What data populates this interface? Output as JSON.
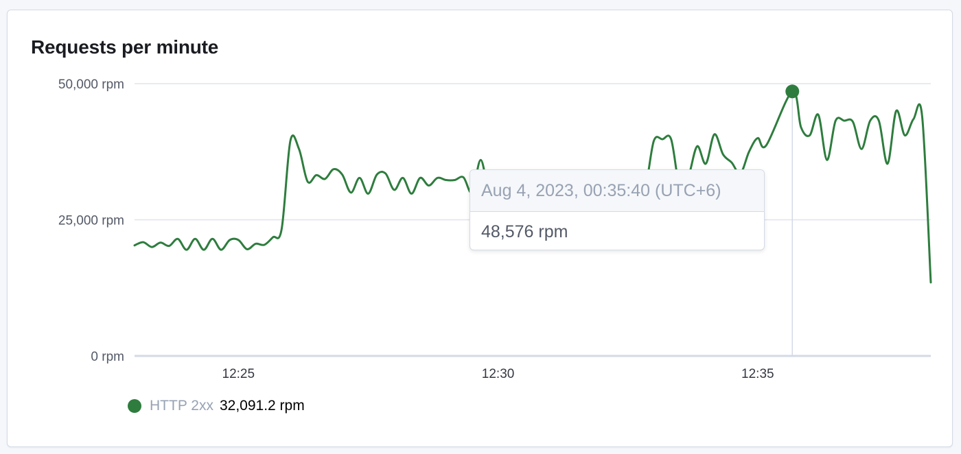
{
  "panel": {
    "title": "Requests per minute"
  },
  "colors": {
    "series": "#2e7d3e",
    "grid": "#dfe3ea",
    "axis": "#d3dae6",
    "crosshair": "#d3dae6"
  },
  "tooltip": {
    "timestamp": "Aug 4, 2023, 00:35:40 (UTC+6)",
    "value": "48,576 rpm"
  },
  "legend": {
    "name": "HTTP 2xx",
    "value": "32,091.2 rpm",
    "color": "#2e7d3e"
  },
  "chart_data": {
    "type": "line",
    "title": "Requests per minute",
    "unit": "rpm",
    "x_unit": "minutes",
    "y_ticks": [
      {
        "value": 0,
        "label": "0 rpm"
      },
      {
        "value": 25000,
        "label": "25,000 rpm"
      },
      {
        "value": 50000,
        "label": "50,000 rpm"
      }
    ],
    "x_ticks": [
      {
        "value": "12:25",
        "label": "12:25"
      },
      {
        "value": "12:30",
        "label": "12:30"
      },
      {
        "value": "12:35",
        "label": "12:35"
      }
    ],
    "xlim": [
      "12:23:00",
      "12:38:20"
    ],
    "ylim": [
      0,
      50000
    ],
    "grid": true,
    "legend_position": "bottom-left",
    "highlight": {
      "x": "12:35:40",
      "y": 48576
    },
    "series": [
      {
        "name": "HTTP 2xx",
        "color": "#2e7d3e",
        "points": [
          [
            "12:23:00",
            20300
          ],
          [
            "12:23:10",
            20900
          ],
          [
            "12:23:20",
            20000
          ],
          [
            "12:23:30",
            20800
          ],
          [
            "12:23:40",
            20200
          ],
          [
            "12:23:50",
            21500
          ],
          [
            "12:24:00",
            19500
          ],
          [
            "12:24:10",
            21500
          ],
          [
            "12:24:20",
            19500
          ],
          [
            "12:24:30",
            21500
          ],
          [
            "12:24:40",
            19500
          ],
          [
            "12:24:50",
            21300
          ],
          [
            "12:25:00",
            21300
          ],
          [
            "12:25:10",
            19600
          ],
          [
            "12:25:20",
            20600
          ],
          [
            "12:25:30",
            20400
          ],
          [
            "12:25:40",
            21800
          ],
          [
            "12:25:50",
            23300
          ],
          [
            "12:26:00",
            39500
          ],
          [
            "12:26:10",
            38000
          ],
          [
            "12:26:20",
            32000
          ],
          [
            "12:26:30",
            33200
          ],
          [
            "12:26:40",
            32500
          ],
          [
            "12:26:50",
            34300
          ],
          [
            "12:27:00",
            33300
          ],
          [
            "12:27:10",
            30000
          ],
          [
            "12:27:20",
            32700
          ],
          [
            "12:27:30",
            29800
          ],
          [
            "12:27:40",
            33300
          ],
          [
            "12:27:50",
            33500
          ],
          [
            "12:28:00",
            30500
          ],
          [
            "12:28:10",
            32700
          ],
          [
            "12:28:20",
            29800
          ],
          [
            "12:28:30",
            32700
          ],
          [
            "12:28:40",
            31300
          ],
          [
            "12:28:50",
            32700
          ],
          [
            "12:29:00",
            32300
          ],
          [
            "12:29:10",
            32300
          ],
          [
            "12:29:20",
            32800
          ],
          [
            "12:29:30",
            30000
          ],
          [
            "12:29:40",
            36000
          ],
          [
            "12:29:50",
            30000
          ],
          [
            "12:30:00",
            33500
          ],
          [
            "12:30:10",
            31500
          ],
          [
            "12:30:20",
            33500
          ],
          [
            "12:30:30",
            33500
          ],
          [
            "12:30:40",
            31000
          ],
          [
            "12:30:50",
            33500
          ],
          [
            "12:31:00",
            33500
          ],
          [
            "12:31:10",
            31000
          ],
          [
            "12:31:20",
            33500
          ],
          [
            "12:31:30",
            31000
          ],
          [
            "12:31:40",
            33500
          ],
          [
            "12:31:50",
            33500
          ],
          [
            "12:32:00",
            31000
          ],
          [
            "12:32:10",
            33500
          ],
          [
            "12:32:20",
            32500
          ],
          [
            "12:32:30",
            32000
          ],
          [
            "12:32:40",
            32500
          ],
          [
            "12:32:50",
            31000
          ],
          [
            "12:33:00",
            39500
          ],
          [
            "12:33:10",
            39800
          ],
          [
            "12:33:20",
            39800
          ],
          [
            "12:33:30",
            31000
          ],
          [
            "12:33:40",
            33000
          ],
          [
            "12:33:50",
            38500
          ],
          [
            "12:34:00",
            35300
          ],
          [
            "12:34:10",
            40700
          ],
          [
            "12:34:20",
            37000
          ],
          [
            "12:34:30",
            35500
          ],
          [
            "12:34:40",
            33500
          ],
          [
            "12:34:50",
            37500
          ],
          [
            "12:35:00",
            40000
          ],
          [
            "12:35:10",
            38700
          ],
          [
            "12:35:40",
            48576
          ],
          [
            "12:35:50",
            42000
          ],
          [
            "12:36:00",
            40500
          ],
          [
            "12:36:10",
            44300
          ],
          [
            "12:36:20",
            36000
          ],
          [
            "12:36:30",
            43200
          ],
          [
            "12:36:40",
            43200
          ],
          [
            "12:36:50",
            43000
          ],
          [
            "12:37:00",
            38000
          ],
          [
            "12:37:10",
            43200
          ],
          [
            "12:37:20",
            43200
          ],
          [
            "12:37:30",
            35300
          ],
          [
            "12:37:40",
            45000
          ],
          [
            "12:37:50",
            40500
          ],
          [
            "12:38:00",
            43500
          ],
          [
            "12:38:10",
            44000
          ],
          [
            "12:38:20",
            13500
          ]
        ]
      }
    ]
  }
}
